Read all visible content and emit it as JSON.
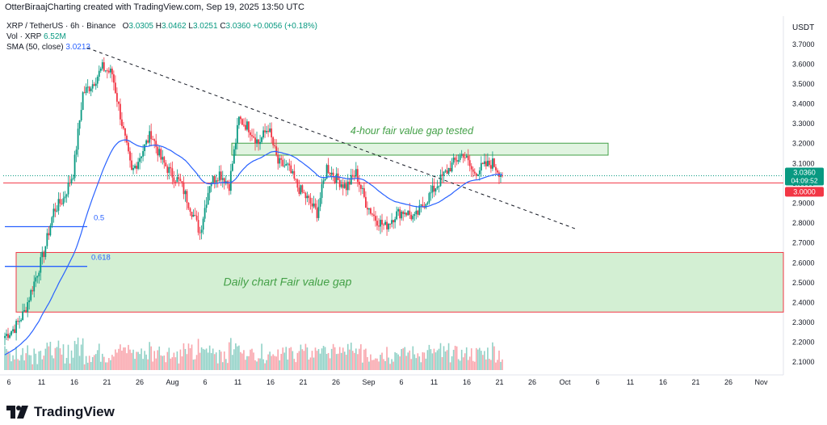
{
  "header": {
    "credit": "OtterBiraajCharting created with TradingView.com, Sep 19, 2025 13:50 UTC",
    "symbol": "XRP / TetherUS · 6h · Binance",
    "ohlc": {
      "o_label": "O",
      "o": "3.0305",
      "h_label": "H",
      "h": "3.0462",
      "l_label": "L",
      "l": "3.0251",
      "c_label": "C",
      "c": "3.0360",
      "change": "+0.0056 (+0.18%)"
    },
    "vol_label": "Vol · XRP",
    "vol_value": "6.52M",
    "sma_label": "SMA (50, close)",
    "sma_value": "3.0213",
    "currency": "USDT"
  },
  "footer": {
    "brand": "TradingView"
  },
  "colors": {
    "up": "#089981",
    "down": "#f23645",
    "sma": "#2962ff",
    "zone_fill": "#c8ebc8",
    "zone_stroke": "#f23645",
    "annotation": "#43a047"
  },
  "chart_data": {
    "type": "candlestick",
    "ylim": [
      2.05,
      3.75
    ],
    "y_ticks": [
      2.1,
      2.2,
      2.3,
      2.4,
      2.5,
      2.6,
      2.7,
      2.8,
      2.9,
      3.0,
      3.1,
      3.2,
      3.3,
      3.4,
      3.5,
      3.6,
      3.7
    ],
    "y_tick_labels": [
      "2.1000",
      "2.2000",
      "2.3000",
      "2.4000",
      "2.5000",
      "2.6000",
      "2.7000",
      "2.8000",
      "2.9000",
      "3.0000",
      "3.1000",
      "3.2000",
      "3.3000",
      "3.4000",
      "3.5000",
      "3.6000",
      "3.7000"
    ],
    "x_labels": [
      "6",
      "11",
      "16",
      "21",
      "26",
      "Aug",
      "6",
      "11",
      "16",
      "21",
      "26",
      "Sep",
      "6",
      "11",
      "16",
      "21",
      "26",
      "Oct",
      "6",
      "11",
      "16",
      "21",
      "26",
      "Nov"
    ],
    "candle_anchors_close": [
      [
        0,
        2.23
      ],
      [
        6,
        2.27
      ],
      [
        12,
        2.35
      ],
      [
        18,
        2.5
      ],
      [
        24,
        2.65
      ],
      [
        30,
        2.86
      ],
      [
        36,
        2.92
      ],
      [
        42,
        3.05
      ],
      [
        48,
        3.45
      ],
      [
        54,
        3.5
      ],
      [
        60,
        3.58
      ],
      [
        66,
        3.55
      ],
      [
        72,
        3.3
      ],
      [
        78,
        3.05
      ],
      [
        84,
        3.15
      ],
      [
        90,
        3.25
      ],
      [
        96,
        3.12
      ],
      [
        102,
        3.05
      ],
      [
        108,
        3.0
      ],
      [
        114,
        2.88
      ],
      [
        120,
        2.75
      ],
      [
        126,
        3.0
      ],
      [
        132,
        3.05
      ],
      [
        138,
        2.99
      ],
      [
        144,
        3.32
      ],
      [
        150,
        3.28
      ],
      [
        156,
        3.2
      ],
      [
        162,
        3.28
      ],
      [
        168,
        3.1
      ],
      [
        174,
        3.08
      ],
      [
        180,
        2.98
      ],
      [
        186,
        2.92
      ],
      [
        192,
        2.85
      ],
      [
        198,
        3.08
      ],
      [
        204,
        3.02
      ],
      [
        210,
        2.98
      ],
      [
        216,
        3.05
      ],
      [
        222,
        2.9
      ],
      [
        228,
        2.82
      ],
      [
        234,
        2.78
      ],
      [
        240,
        2.84
      ],
      [
        246,
        2.86
      ],
      [
        252,
        2.82
      ],
      [
        258,
        2.9
      ],
      [
        264,
        2.97
      ],
      [
        270,
        3.04
      ],
      [
        276,
        3.1
      ],
      [
        282,
        3.15
      ],
      [
        288,
        3.05
      ],
      [
        294,
        3.08
      ],
      [
        300,
        3.1
      ],
      [
        306,
        3.036
      ]
    ],
    "sma": {
      "name": "SMA (50, close)",
      "last": 3.0213
    },
    "volume_series": "Vol · XRP",
    "price_labels": [
      {
        "value": "3.0360",
        "sub": "04:09:52",
        "color": "#089981"
      },
      {
        "value": "3.0000",
        "color": "#f23645"
      }
    ],
    "horizontal_lines": [
      {
        "price": 3.0,
        "color": "#f23645"
      },
      {
        "price": 3.036,
        "color": "#089981",
        "dotted": true
      }
    ],
    "trendline": {
      "from": [
        0,
        3.68
      ],
      "to": [
        1,
        2.77
      ],
      "style": "dashed"
    },
    "fib_levels": [
      {
        "label": "0.5",
        "price": 2.78
      },
      {
        "label": "0.618",
        "price": 2.58
      }
    ],
    "zones": [
      {
        "label": "4-hour fair value gap tested",
        "top": 3.2,
        "bottom": 3.14
      },
      {
        "label": "Daily chart Fair value gap",
        "top": 2.65,
        "bottom": 2.35
      }
    ]
  }
}
